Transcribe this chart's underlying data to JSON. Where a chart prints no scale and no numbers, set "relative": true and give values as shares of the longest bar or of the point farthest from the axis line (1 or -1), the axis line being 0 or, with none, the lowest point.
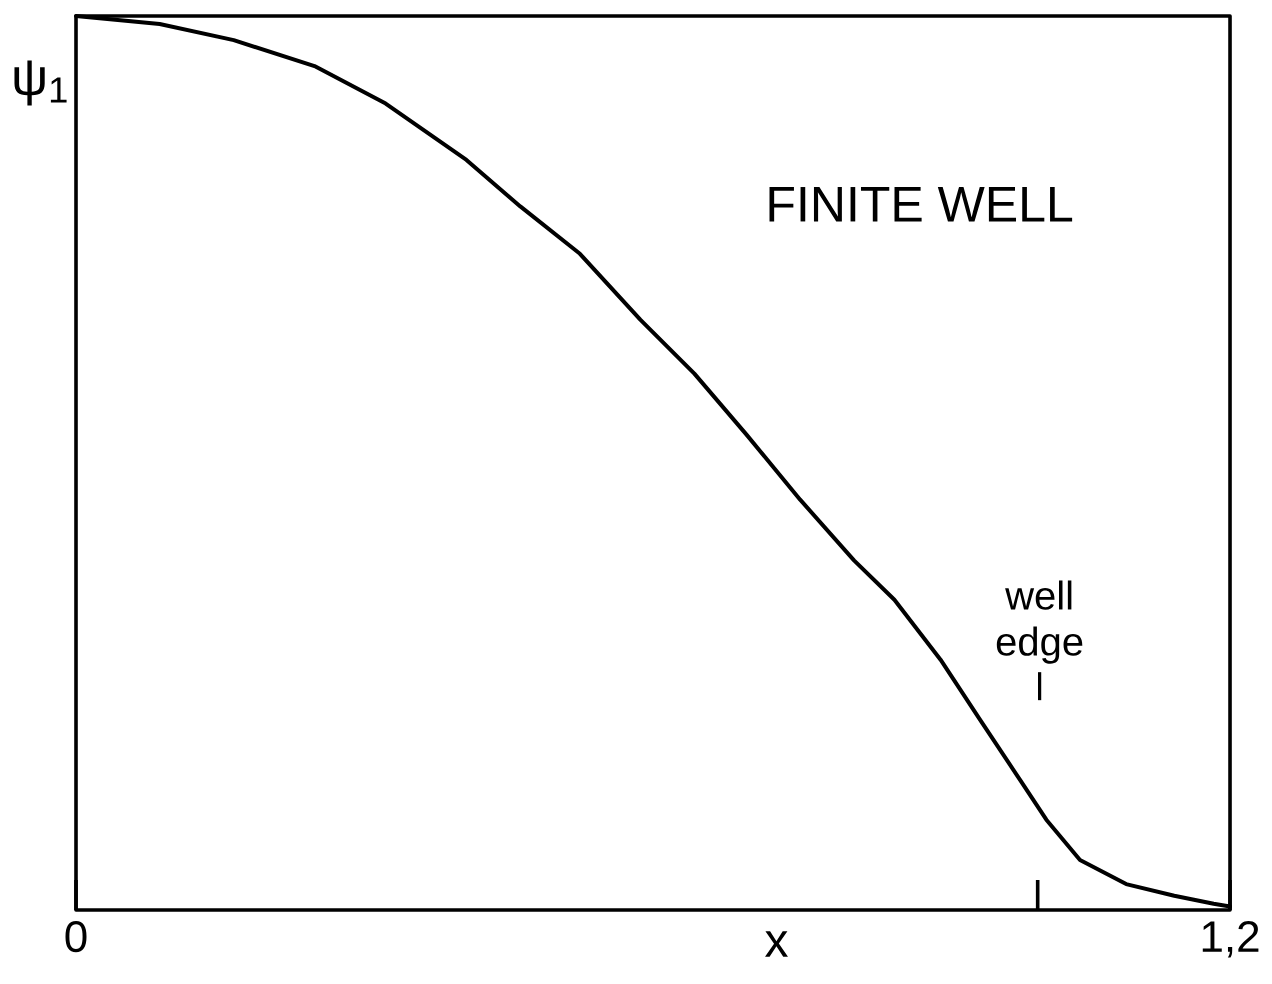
{
  "chart_data": {
    "type": "line",
    "title": "FINITE WELL",
    "xlabel": "x",
    "ylabel": "ψ$_{1}$",
    "relative": true,
    "x": [
      0,
      0.087,
      0.164,
      0.248,
      0.322,
      0.406,
      0.462,
      0.524,
      0.587,
      0.643,
      0.697,
      0.753,
      0.809,
      0.851,
      0.899,
      0.94,
      0.982,
      1.009,
      1.044,
      1.092,
      1.142,
      1.183,
      1.2
    ],
    "series": [
      {
        "color": "#000000",
        "values": [
          1,
          0.991,
          0.973,
          0.944,
          0.902,
          0.839,
          0.787,
          0.734,
          0.66,
          0.6,
          0.532,
          0.459,
          0.391,
          0.347,
          0.28,
          0.213,
          0.145,
          0.101,
          0.056,
          0.029,
          0.016,
          0.007,
          0.004
        ]
      }
    ],
    "xlim": [
      0,
      1.2
    ],
    "xticks": [
      0,
      {
        "value": 1,
        "label": null
      },
      {
        "value": 1.2,
        "label": "1,2"
      }
    ],
    "annotations": [
      "well edge"
    ],
    "marker": "none",
    "line_style": "solid"
  }
}
